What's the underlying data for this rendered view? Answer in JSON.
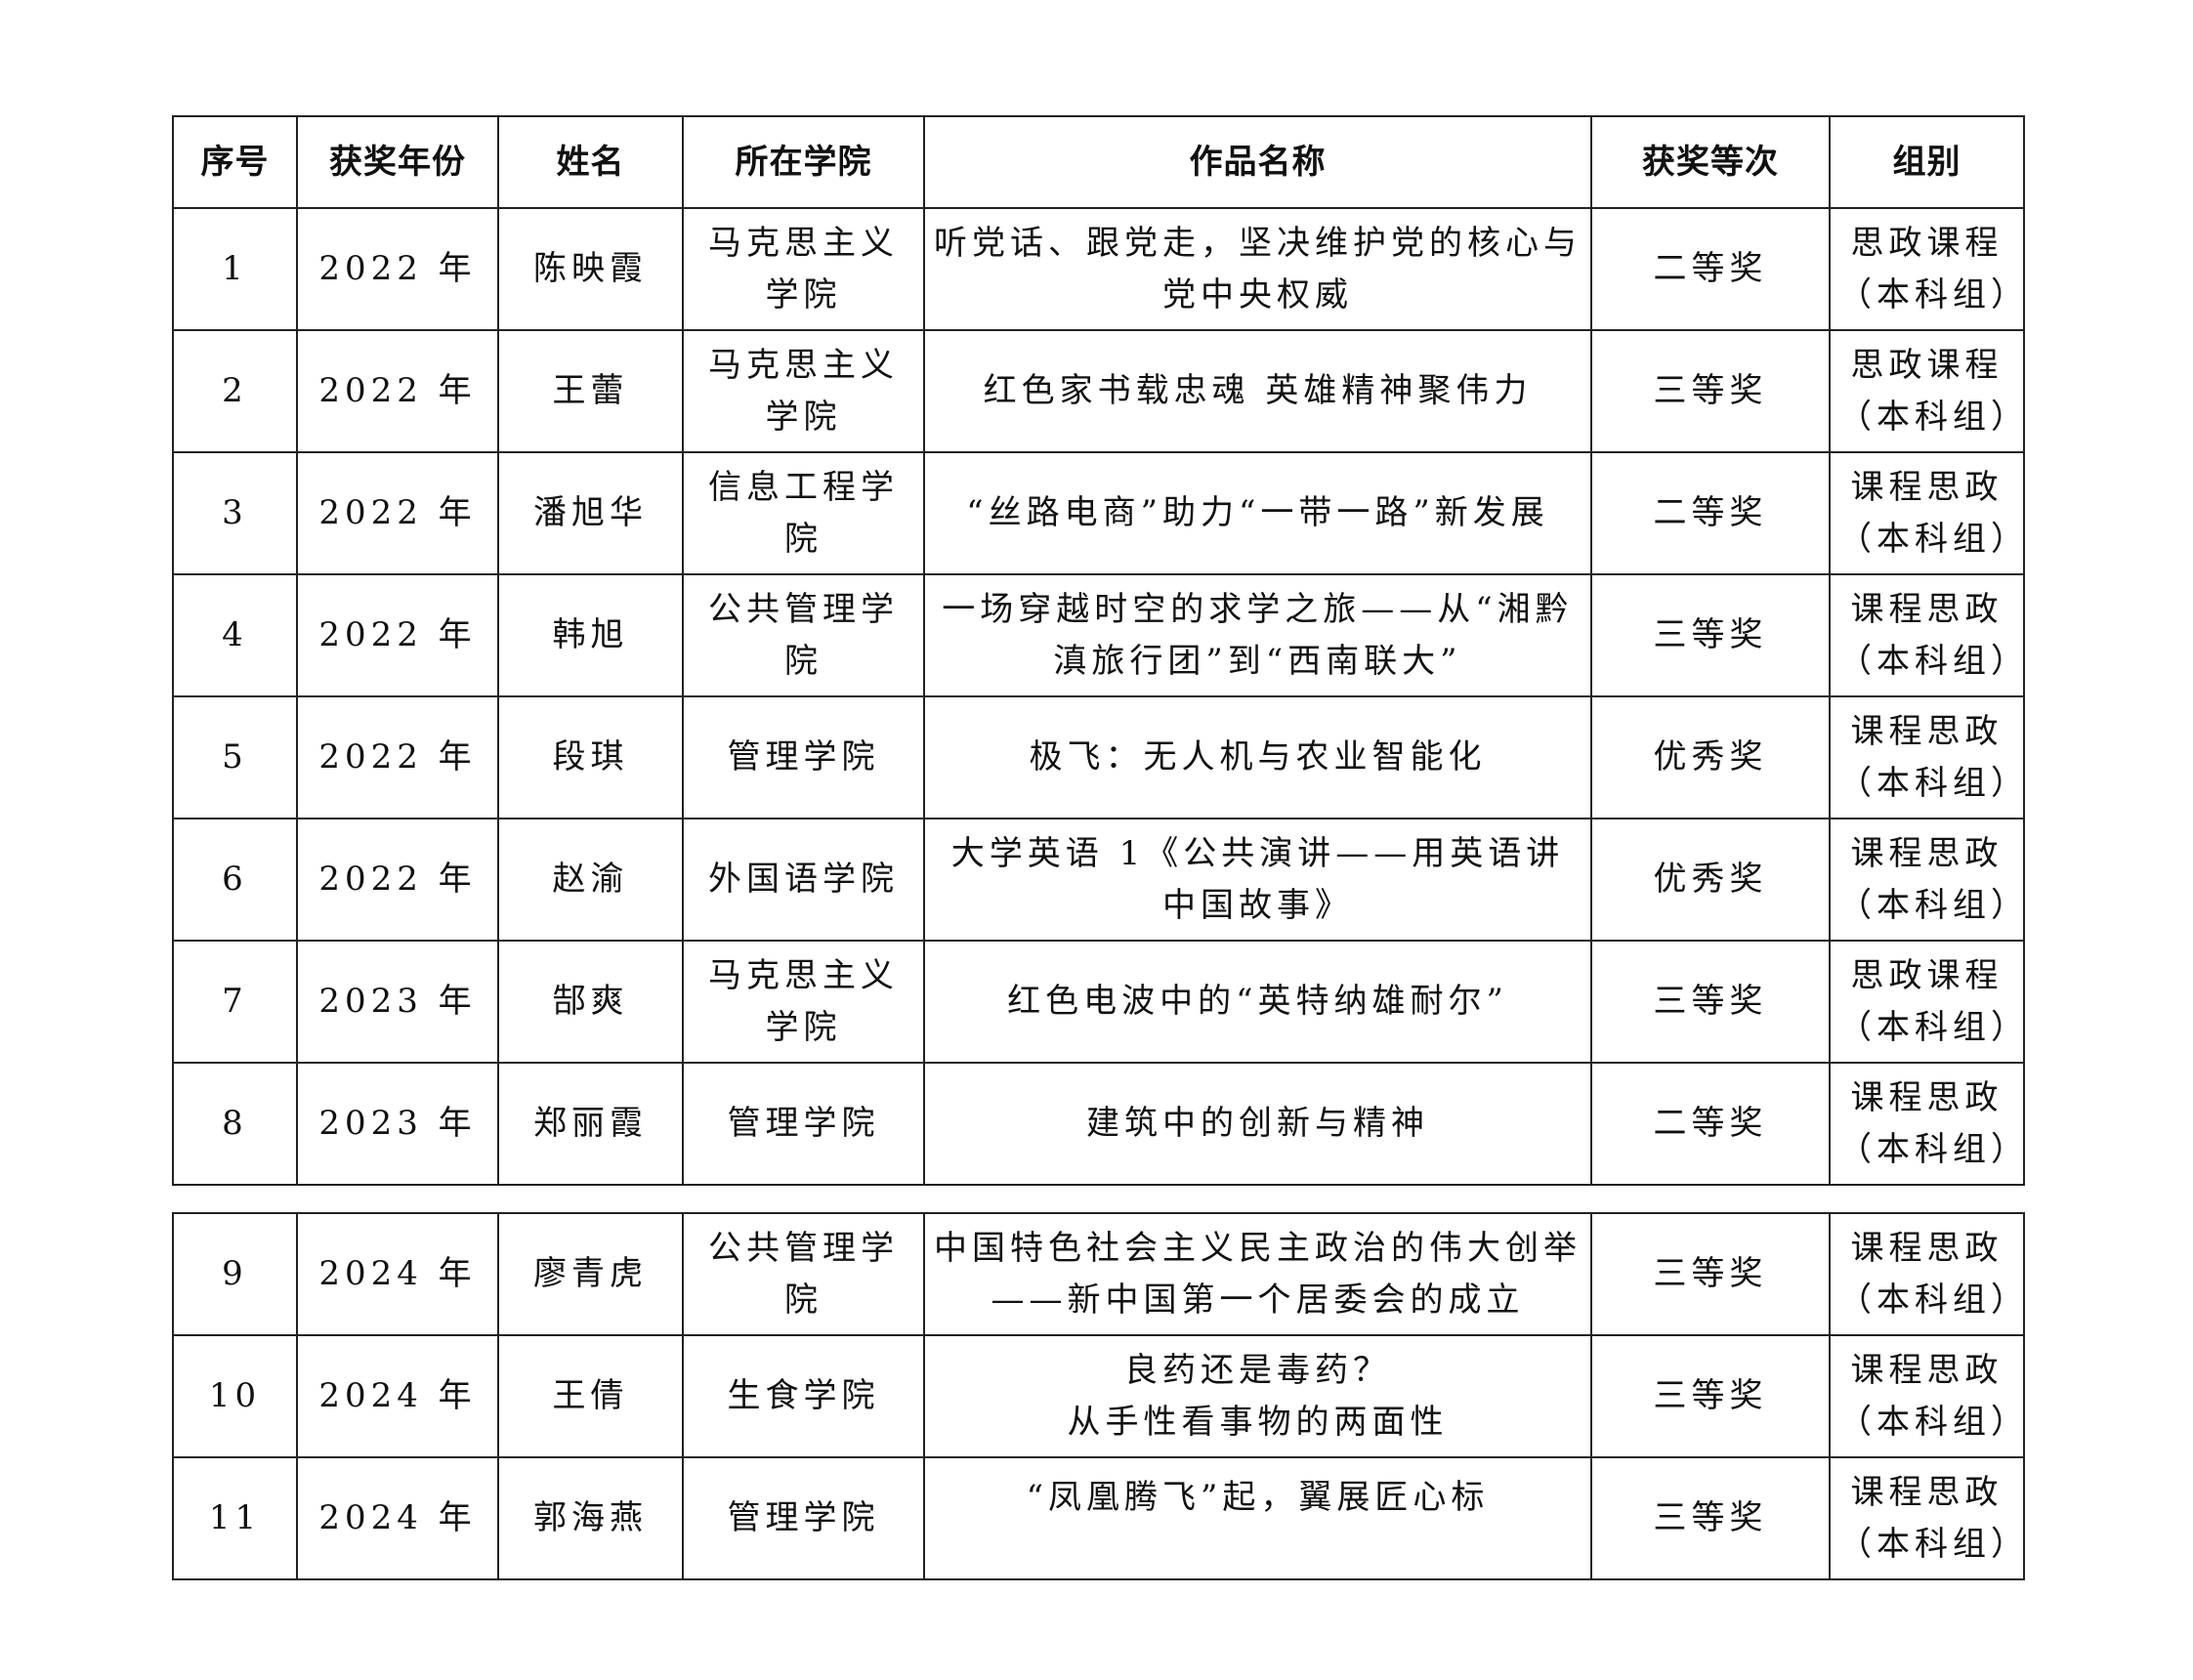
{
  "headers": [
    "序号",
    "获奖年份",
    "姓名",
    "所在学院",
    "作品名称",
    "获奖等次",
    "组别"
  ],
  "rows": [
    [
      "1",
      "2022 年",
      "陈映霞",
      "马克思主义学院",
      "听党话、跟党走，坚决维护党的核心与党中央权威",
      "二等奖",
      "思政课程（本科组）"
    ],
    [
      "2",
      "2022 年",
      "王蕾",
      "马克思主义学院",
      "红色家书载忠魂 英雄精神聚伟力",
      "三等奖",
      "思政课程（本科组）"
    ],
    [
      "3",
      "2022 年",
      "潘旭华",
      "信息工程学院",
      "“丝路电商”助力“一带一路”新发展",
      "二等奖",
      "课程思政（本科组）"
    ],
    [
      "4",
      "2022 年",
      "韩旭",
      "公共管理学院",
      "一场穿越时空的求学之旅——从“湘黔滇旅行团”到“西南联大”",
      "三等奖",
      "课程思政（本科组）"
    ],
    [
      "5",
      "2022 年",
      "段琪",
      "管理学院",
      "极飞：无人机与农业智能化",
      "优秀奖",
      "课程思政（本科组）"
    ],
    [
      "6",
      "2022 年",
      "赵渝",
      "外国语学院",
      "大学英语 1《公共演讲——用英语讲中国故事》",
      "优秀奖",
      "课程思政（本科组）"
    ],
    [
      "7",
      "2023 年",
      "郜爽",
      "马克思主义学院",
      "红色电波中的“英特纳雄耐尔”",
      "三等奖",
      "思政课程（本科组）"
    ],
    [
      "8",
      "2023 年",
      "郑丽霞",
      "管理学院",
      "建筑中的创新与精神",
      "二等奖",
      "课程思政（本科组）"
    ],
    [
      "9",
      "2024 年",
      "廖青虎",
      "公共管理学院",
      "中国特色社会主义民主政治的伟大创举\n——新中国第一个居委会的成立",
      "三等奖",
      "课程思政（本科组）"
    ],
    [
      "10",
      "2024 年",
      "王倩",
      "生食学院",
      "良药还是毒药？\n从手性看事物的两面性",
      "三等奖",
      "课程思政（本科组）"
    ],
    [
      "11",
      "2024 年",
      "郭海燕",
      "管理学院",
      "“凤凰腾飞”起，翼展匠心标",
      "三等奖",
      "课程思政（本科组）"
    ]
  ]
}
